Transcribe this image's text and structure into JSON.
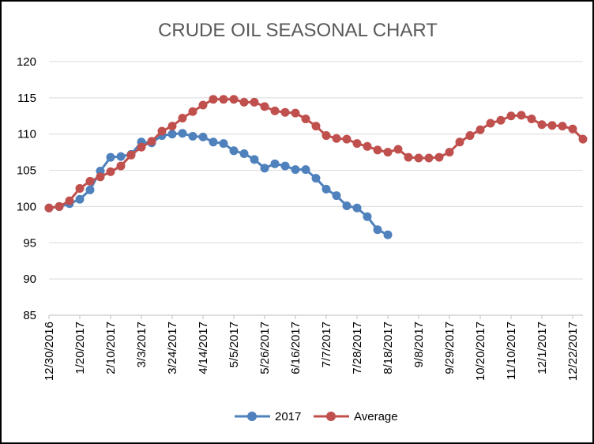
{
  "chart_data": {
    "type": "line",
    "title": "CRUDE OIL SEASONAL CHART",
    "xlabel": "",
    "ylabel": "",
    "ylim": [
      85,
      120
    ],
    "yticks": [
      85,
      90,
      95,
      100,
      105,
      110,
      115,
      120
    ],
    "grid": "horizontal",
    "legend_position": "bottom",
    "x_tick_labels": [
      "12/30/2016",
      "1/20/2017",
      "2/10/2017",
      "3/3/2017",
      "3/24/2017",
      "4/14/2017",
      "5/5/2017",
      "5/26/2017",
      "6/16/2017",
      "7/7/2017",
      "7/28/2017",
      "8/18/2017",
      "9/8/2017",
      "9/29/2017",
      "10/20/2017",
      "11/10/2017",
      "12/1/2017",
      "12/22/2017"
    ],
    "x_tick_weeks": [
      0,
      3,
      6,
      9,
      12,
      15,
      18,
      21,
      24,
      27,
      30,
      33,
      36,
      39,
      42,
      45,
      48,
      51
    ],
    "x_range_weeks": [
      0,
      52
    ],
    "series": [
      {
        "name": "2017",
        "color": "#4F81BD",
        "x": [
          0,
          1,
          2,
          3,
          4,
          5,
          6,
          7,
          8,
          9,
          10,
          11,
          12,
          13,
          14,
          15,
          16,
          17,
          18,
          19,
          20,
          21,
          22,
          23,
          24,
          25,
          26,
          27,
          28,
          29,
          30,
          31,
          32,
          33
        ],
        "values": [
          99.8,
          100.0,
          100.4,
          101.0,
          102.3,
          104.9,
          106.8,
          106.9,
          107.2,
          108.9,
          108.8,
          109.8,
          110.0,
          110.1,
          109.7,
          109.6,
          108.9,
          108.7,
          107.7,
          107.3,
          106.5,
          105.3,
          105.9,
          105.6,
          105.1,
          105.1,
          103.9,
          102.4,
          101.5,
          100.1,
          99.8,
          98.6,
          96.8,
          96.1
        ]
      },
      {
        "name": "Average",
        "color": "#C0504D",
        "x": [
          0,
          1,
          2,
          3,
          4,
          5,
          6,
          7,
          8,
          9,
          10,
          11,
          12,
          13,
          14,
          15,
          16,
          17,
          18,
          19,
          20,
          21,
          22,
          23,
          24,
          25,
          26,
          27,
          28,
          29,
          30,
          31,
          32,
          33,
          34,
          35,
          36,
          37,
          38,
          39,
          40,
          41,
          42,
          43,
          44,
          45,
          46,
          47,
          48,
          49,
          50,
          51,
          52
        ],
        "values": [
          99.8,
          100.0,
          100.8,
          102.5,
          103.5,
          104.1,
          104.8,
          105.6,
          107.1,
          108.2,
          109.0,
          110.4,
          111.1,
          112.2,
          113.1,
          114.0,
          114.8,
          114.8,
          114.8,
          114.4,
          114.4,
          113.8,
          113.2,
          113.0,
          112.9,
          112.1,
          111.1,
          109.8,
          109.4,
          109.3,
          108.7,
          108.3,
          107.8,
          107.5,
          107.9,
          106.8,
          106.7,
          106.7,
          106.8,
          107.5,
          108.9,
          109.8,
          110.6,
          111.5,
          111.9,
          112.5,
          112.6,
          112.1,
          111.3,
          111.2,
          111.1,
          110.7,
          109.3
        ]
      }
    ]
  }
}
